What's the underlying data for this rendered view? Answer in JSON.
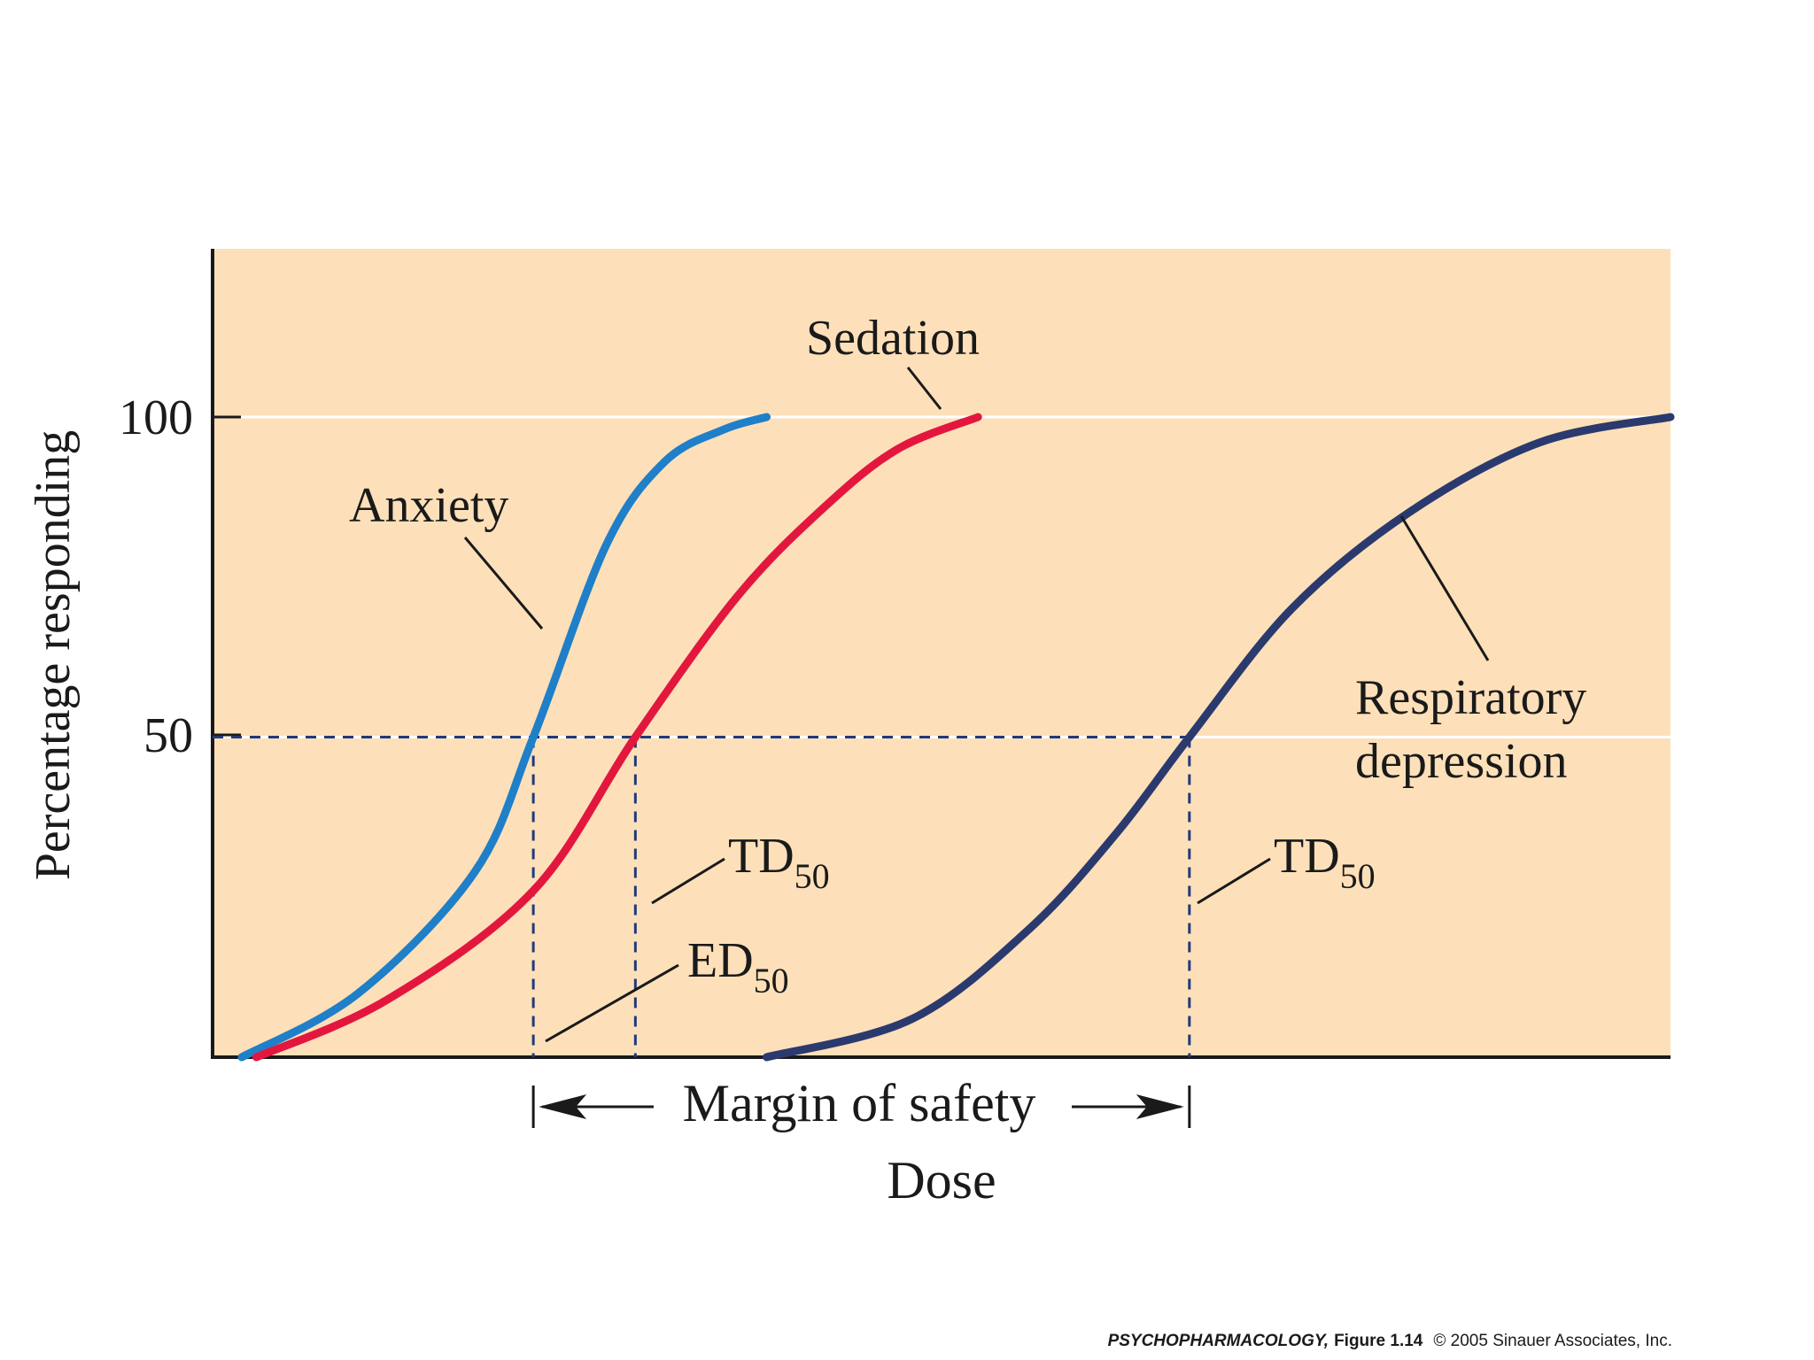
{
  "chart_data": {
    "type": "line",
    "title": "",
    "xlabel": "Dose",
    "ylabel": "Percentage responding",
    "ylim": [
      0,
      126
    ],
    "xlim": [
      0,
      100
    ],
    "yticks": [
      "100",
      "50"
    ],
    "ytick_values": [
      100,
      50
    ],
    "grid": "horizontal at 50 and 100",
    "series": [
      {
        "name": "Anxiety",
        "color": "#1f7fc8",
        "x": [
          2,
          10,
          18,
          22,
          27,
          31,
          35,
          38
        ],
        "y": [
          0,
          10,
          29,
          50,
          80,
          93,
          98,
          100
        ]
      },
      {
        "name": "Sedation",
        "color": "#e3173e",
        "x": [
          3,
          12,
          22,
          29,
          36,
          42,
          47,
          52.5
        ],
        "y": [
          0,
          9,
          26,
          50,
          72,
          86,
          95,
          100
        ]
      },
      {
        "name": "Respiratory depression",
        "color": "#2b3a6e",
        "x": [
          38,
          48,
          56,
          62,
          67,
          74,
          82,
          91,
          100
        ],
        "y": [
          0,
          6,
          20,
          35,
          50,
          70,
          85,
          96,
          100
        ]
      }
    ],
    "ed50": {
      "label": "ED",
      "sub": "50",
      "x": 22
    },
    "td50": [
      {
        "label": "TD",
        "sub": "50",
        "x": 29
      },
      {
        "label": "TD",
        "sub": "50",
        "x": 67
      }
    ],
    "margin_of_safety": {
      "label": "Margin of safety",
      "from": 22,
      "to": 67
    }
  },
  "footer": {
    "book": "PSYCHOPHARMACOLOGY,",
    "figure": "Figure 1.14",
    "copyright": "© 2005 Sinauer Associates, Inc."
  },
  "colors": {
    "plot_bg": "#fde0b9",
    "axis": "#1a1a1a",
    "dash": "#1f3a7a"
  }
}
